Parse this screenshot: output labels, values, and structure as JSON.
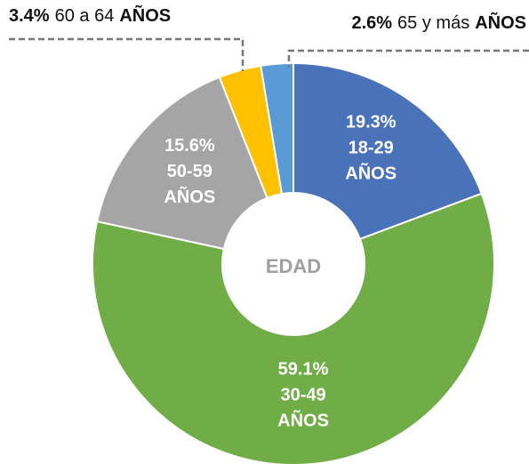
{
  "chart_data": {
    "type": "donut",
    "center_label": "EDAD",
    "unit_label": "AÑOS",
    "categories": [
      "18-29",
      "30-49",
      "50-59",
      "60 a 64",
      "65 y más"
    ],
    "values": [
      19.3,
      59.1,
      15.6,
      3.4,
      2.6
    ],
    "value_labels": [
      "19.3%",
      "59.1%",
      "15.6%",
      "3.4%",
      "2.6%"
    ],
    "colors": [
      "#4a72b8",
      "#70ad47",
      "#a5a5a5",
      "#ffc000",
      "#5b9bd5"
    ]
  }
}
